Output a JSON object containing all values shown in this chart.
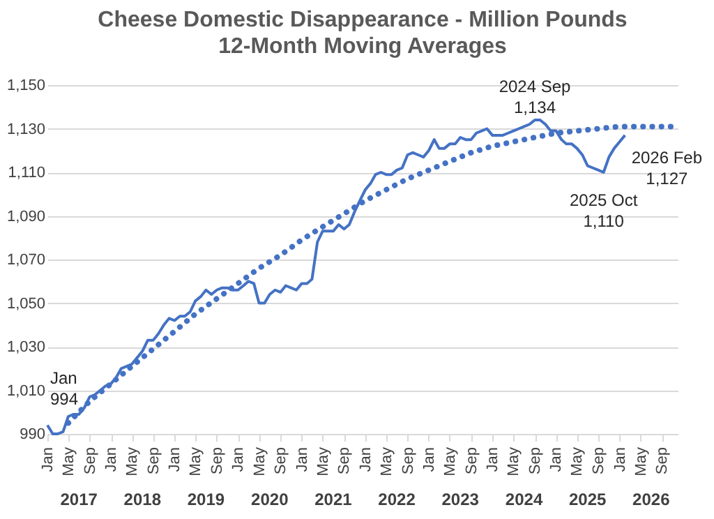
{
  "chart_data": {
    "type": "line",
    "title": "Cheese  Domestic Disappearance - Million Pounds",
    "subtitle": "12-Month Moving Averages",
    "xlim": [
      "2017-01",
      "2026-12"
    ],
    "xticks": [
      {
        "value": "2017-01",
        "label": "Jan"
      },
      {
        "value": "2017-05",
        "label": "May"
      },
      {
        "value": "2017-09",
        "label": "Sep"
      },
      {
        "value": "2018-01",
        "label": "Jan"
      },
      {
        "value": "2018-05",
        "label": "May"
      },
      {
        "value": "2018-09",
        "label": "Sep"
      },
      {
        "value": "2019-01",
        "label": "Jan"
      },
      {
        "value": "2019-05",
        "label": "May"
      },
      {
        "value": "2019-09",
        "label": "Sep"
      },
      {
        "value": "2020-01",
        "label": "Jan"
      },
      {
        "value": "2020-05",
        "label": "May"
      },
      {
        "value": "2020-09",
        "label": "Sep"
      },
      {
        "value": "2021-01",
        "label": "Jan"
      },
      {
        "value": "2021-05",
        "label": "May"
      },
      {
        "value": "2021-09",
        "label": "Sep"
      },
      {
        "value": "2022-01",
        "label": "Jan"
      },
      {
        "value": "2022-05",
        "label": "May"
      },
      {
        "value": "2022-09",
        "label": "Sep"
      },
      {
        "value": "2023-01",
        "label": "Jan"
      },
      {
        "value": "2023-05",
        "label": "May"
      },
      {
        "value": "2023-09",
        "label": "Sep"
      },
      {
        "value": "2024-01",
        "label": "Jan"
      },
      {
        "value": "2024-05",
        "label": "May"
      },
      {
        "value": "2024-09",
        "label": "Sep"
      },
      {
        "value": "2025-01",
        "label": "Jan"
      },
      {
        "value": "2025-05",
        "label": "May"
      },
      {
        "value": "2025-09",
        "label": "Sep"
      },
      {
        "value": "2026-01",
        "label": "Jan"
      },
      {
        "value": "2026-05",
        "label": "May"
      },
      {
        "value": "2026-09",
        "label": "Sep"
      }
    ],
    "x2ticks": [
      {
        "value": "2017-07",
        "label": "2017"
      },
      {
        "value": "2018-07",
        "label": "2018"
      },
      {
        "value": "2019-07",
        "label": "2019"
      },
      {
        "value": "2020-07",
        "label": "2020"
      },
      {
        "value": "2021-07",
        "label": "2021"
      },
      {
        "value": "2022-07",
        "label": "2022"
      },
      {
        "value": "2023-07",
        "label": "2023"
      },
      {
        "value": "2024-07",
        "label": "2024"
      },
      {
        "value": "2025-07",
        "label": "2025"
      },
      {
        "value": "2026-07",
        "label": "2026"
      }
    ],
    "ylim": [
      990,
      1150
    ],
    "yticks": [
      990,
      {
        "value": 1010,
        "label": "1,010"
      },
      {
        "value": 1030,
        "label": "1,030"
      },
      {
        "value": 1050,
        "label": "1,050"
      },
      {
        "value": 1070,
        "label": "1,070"
      },
      {
        "value": 1090,
        "label": "1,090"
      },
      {
        "value": 1110,
        "label": "1,110"
      },
      {
        "value": 1130,
        "label": "1,130"
      },
      {
        "value": 1150,
        "label": "1,150"
      }
    ],
    "grid": "y",
    "legend": false,
    "x2lim": [
      "2017-01",
      "2026-12"
    ],
    "series": [
      {
        "color": "#4472c4",
        "line_style": "solid",
        "x": [
          "2017-01",
          "2017-02",
          "2017-03",
          "2017-04",
          "2017-05",
          "2017-06",
          "2017-07",
          "2017-08",
          "2017-09",
          "2017-10",
          "2017-11",
          "2017-12",
          "2018-01",
          "2018-02",
          "2018-03",
          "2018-04",
          "2018-05",
          "2018-06",
          "2018-07",
          "2018-08",
          "2018-09",
          "2018-10",
          "2018-11",
          "2018-12",
          "2019-01",
          "2019-02",
          "2019-03",
          "2019-04",
          "2019-05",
          "2019-06",
          "2019-07",
          "2019-08",
          "2019-09",
          "2019-10",
          "2019-11",
          "2019-12",
          "2020-01",
          "2020-02",
          "2020-03",
          "2020-04",
          "2020-05",
          "2020-06",
          "2020-07",
          "2020-08",
          "2020-09",
          "2020-10",
          "2020-11",
          "2020-12",
          "2021-01",
          "2021-02",
          "2021-03",
          "2021-04",
          "2021-05",
          "2021-06",
          "2021-07",
          "2021-08",
          "2021-09",
          "2021-10",
          "2021-11",
          "2021-12",
          "2022-01",
          "2022-02",
          "2022-03",
          "2022-04",
          "2022-05",
          "2022-06",
          "2022-07",
          "2022-08",
          "2022-09",
          "2022-10",
          "2022-11",
          "2022-12",
          "2023-01",
          "2023-02",
          "2023-03",
          "2023-04",
          "2023-05",
          "2023-06",
          "2023-07",
          "2023-08",
          "2023-09",
          "2023-10",
          "2023-11",
          "2023-12",
          "2024-01",
          "2024-02",
          "2024-03",
          "2024-04",
          "2024-05",
          "2024-06",
          "2024-07",
          "2024-08",
          "2024-09",
          "2024-10",
          "2024-11",
          "2024-12",
          "2025-01",
          "2025-02",
          "2025-03",
          "2025-04",
          "2025-05",
          "2025-06",
          "2025-07",
          "2025-08",
          "2025-09",
          "2025-10",
          "2025-11",
          "2025-12",
          "2026-01",
          "2026-02"
        ],
        "values": [
          994,
          990,
          990,
          991,
          998,
          999,
          999,
          1002,
          1007,
          1008,
          1010,
          1012,
          1013,
          1016,
          1020,
          1021,
          1022,
          1025,
          1028,
          1033,
          1033,
          1036,
          1040,
          1043,
          1042,
          1044,
          1044,
          1046,
          1051,
          1053,
          1056,
          1054,
          1056,
          1057,
          1057,
          1056,
          1056,
          1058,
          1060,
          1059,
          1050,
          1050,
          1054,
          1056,
          1055,
          1058,
          1057,
          1056,
          1059,
          1059,
          1061,
          1078,
          1083,
          1083,
          1083,
          1086,
          1084,
          1086,
          1092,
          1097,
          1102,
          1105,
          1109,
          1110,
          1109,
          1109,
          1111,
          1112,
          1118,
          1119,
          1118,
          1117,
          1120,
          1125,
          1121,
          1121,
          1123,
          1123,
          1126,
          1125,
          1125,
          1128,
          1129,
          1130,
          1127,
          1127,
          1127,
          1128,
          1129,
          1130,
          1131,
          1132,
          1134,
          1134,
          1132,
          1129,
          1129,
          1125,
          1123,
          1123,
          1121,
          1118,
          1113,
          1112,
          1111,
          1110,
          1117,
          1121,
          1124,
          1127
        ]
      },
      {
        "color": "#4472c4",
        "line_style": "dotted",
        "x": [
          "2017-05",
          "2017-09",
          "2018-01",
          "2018-05",
          "2018-09",
          "2019-01",
          "2019-05",
          "2019-09",
          "2020-01",
          "2020-05",
          "2020-09",
          "2021-01",
          "2021-05",
          "2021-09",
          "2022-01",
          "2022-05",
          "2022-09",
          "2023-01",
          "2023-05",
          "2023-09",
          "2024-01",
          "2024-05",
          "2024-09",
          "2025-01",
          "2025-05",
          "2025-09",
          "2026-01",
          "2026-05",
          "2026-09",
          "2026-12"
        ],
        "values": [
          995,
          1005,
          1013,
          1021,
          1029,
          1037,
          1045,
          1052,
          1059,
          1066,
          1072,
          1079,
          1085,
          1091,
          1097,
          1102,
          1107,
          1111,
          1115,
          1119,
          1122,
          1124,
          1126,
          1128,
          1129,
          1130,
          1131,
          1131,
          1131,
          1131
        ]
      }
    ],
    "annotations": [
      {
        "text": "Jan\n994",
        "x": "2017-01",
        "y": 994
      },
      {
        "text": "2024 Sep\n1,134",
        "x": "2024-09",
        "y": 1134
      },
      {
        "text": "2025 Oct\n1,110",
        "x": "2025-10",
        "y": 1110
      },
      {
        "text": "2026 Feb\n1,127",
        "x": "2026-02",
        "y": 1127
      }
    ]
  }
}
